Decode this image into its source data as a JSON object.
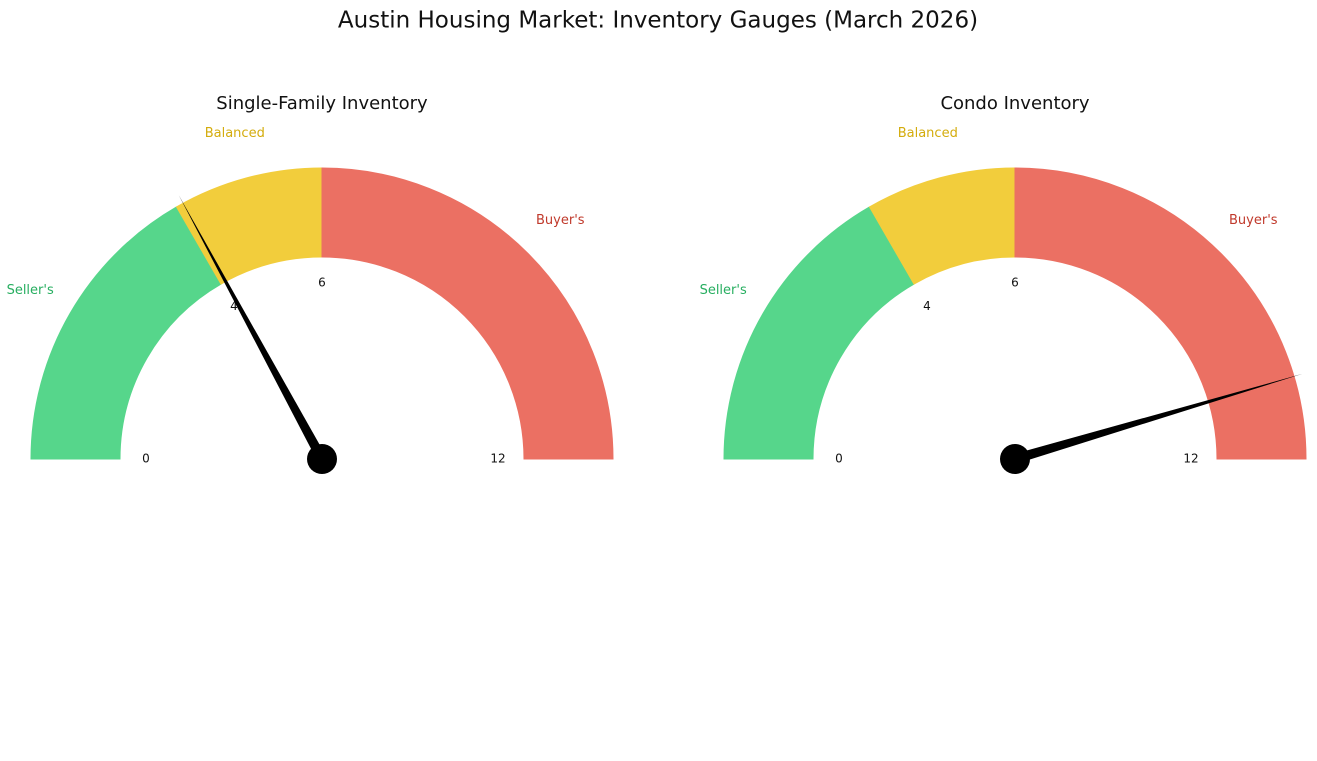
{
  "title": "Austin Housing Market: Inventory Gauges (March 2026)",
  "chart_data": [
    {
      "type": "gauge",
      "title": "Single-Family Inventory",
      "value": 4.1,
      "range": [
        0,
        12
      ],
      "ticks": [
        0,
        4,
        6,
        12
      ],
      "bands": [
        {
          "name": "Seller's",
          "from": 0,
          "to": 4,
          "color": "#56d68b",
          "label_color": "#27ae60"
        },
        {
          "name": "Balanced",
          "from": 4,
          "to": 6,
          "color": "#f2cd3c",
          "label_color": "#d4ac0d"
        },
        {
          "name": "Buyer's",
          "from": 6,
          "to": 12,
          "color": "#eb7063",
          "label_color": "#c0392b"
        }
      ],
      "needle_color": "#000000"
    },
    {
      "type": "gauge",
      "title": "Condo Inventory",
      "value": 10.9,
      "range": [
        0,
        12
      ],
      "ticks": [
        0,
        4,
        6,
        12
      ],
      "bands": [
        {
          "name": "Seller's",
          "from": 0,
          "to": 4,
          "color": "#56d68b",
          "label_color": "#27ae60"
        },
        {
          "name": "Balanced",
          "from": 4,
          "to": 6,
          "color": "#f2cd3c",
          "label_color": "#d4ac0d"
        },
        {
          "name": "Buyer's",
          "from": 6,
          "to": 12,
          "color": "#eb7063",
          "label_color": "#c0392b"
        }
      ],
      "needle_color": "#000000"
    }
  ]
}
